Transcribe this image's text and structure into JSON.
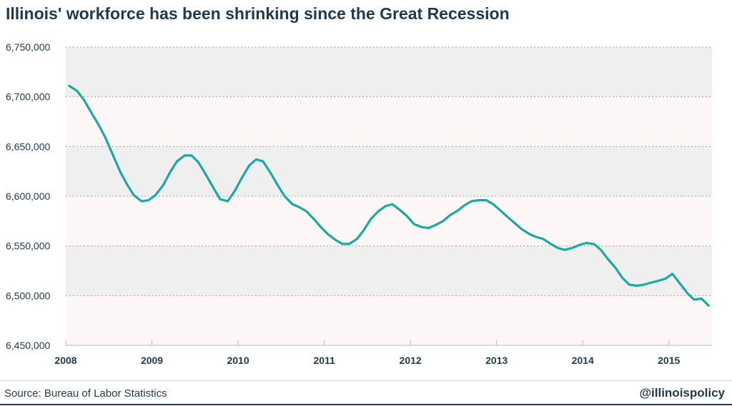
{
  "title": "Illinois' workforce has been shrinking since the Great Recession",
  "footer": {
    "source": "Source: Bureau of Labor Statistics",
    "handle": "@illinoispolicy"
  },
  "colors": {
    "line": "#1aaaa0",
    "band_dark": "#efefef",
    "band_light": "#fdf6f6",
    "text": "#1f3a4f",
    "grid": "#9aa4ab"
  },
  "chart_data": {
    "type": "line",
    "title": "Illinois' workforce has been shrinking since the Great Recession",
    "xlabel": "",
    "ylabel": "",
    "ylim": [
      6450000,
      6750000
    ],
    "yticks": [
      6450000,
      6500000,
      6550000,
      6600000,
      6650000,
      6700000,
      6750000
    ],
    "ytick_labels": [
      "6,450,000",
      "6,500,000",
      "6,550,000",
      "6,600,000",
      "6,650,000",
      "6,700,000",
      "6,750,000"
    ],
    "xlim": [
      2008.0,
      2015.5
    ],
    "xticks": [
      2008,
      2009,
      2010,
      2011,
      2012,
      2013,
      2014,
      2015
    ],
    "xtick_labels": [
      "2008",
      "2009",
      "2010",
      "2011",
      "2012",
      "2013",
      "2014",
      "2015"
    ],
    "grid": true,
    "alternating_bands": true,
    "series": [
      {
        "name": "",
        "color": "#1aaaa0",
        "x": [
          2008.04,
          2008.13,
          2008.21,
          2008.29,
          2008.38,
          2008.46,
          2008.54,
          2008.63,
          2008.71,
          2008.79,
          2008.88,
          2008.96,
          2009.04,
          2009.13,
          2009.21,
          2009.29,
          2009.38,
          2009.46,
          2009.54,
          2009.63,
          2009.71,
          2009.79,
          2009.88,
          2009.96,
          2010.04,
          2010.13,
          2010.21,
          2010.29,
          2010.38,
          2010.46,
          2010.54,
          2010.63,
          2010.71,
          2010.79,
          2010.88,
          2010.96,
          2011.04,
          2011.13,
          2011.21,
          2011.29,
          2011.38,
          2011.46,
          2011.54,
          2011.63,
          2011.71,
          2011.79,
          2011.88,
          2011.96,
          2012.04,
          2012.13,
          2012.21,
          2012.29,
          2012.38,
          2012.46,
          2012.54,
          2012.63,
          2012.71,
          2012.79,
          2012.88,
          2012.96,
          2013.04,
          2013.13,
          2013.21,
          2013.29,
          2013.38,
          2013.46,
          2013.54,
          2013.63,
          2013.71,
          2013.79,
          2013.88,
          2013.96,
          2014.04,
          2014.13,
          2014.21,
          2014.29,
          2014.38,
          2014.46,
          2014.54,
          2014.63,
          2014.71,
          2014.79,
          2014.88,
          2014.96,
          2015.04,
          2015.13,
          2015.21,
          2015.29,
          2015.38,
          2015.46
        ],
        "values": [
          6711000,
          6706000,
          6697000,
          6685000,
          6672000,
          6659000,
          6643000,
          6625000,
          6612000,
          6601000,
          6595000,
          6596000,
          6601000,
          6611000,
          6624000,
          6635000,
          6641000,
          6641000,
          6634000,
          6621000,
          6609000,
          6597000,
          6595000,
          6605000,
          6618000,
          6631000,
          6637000,
          6635000,
          6623000,
          6611000,
          6600000,
          6592000,
          6589000,
          6585000,
          6577000,
          6569000,
          6562000,
          6556000,
          6552000,
          6552000,
          6557000,
          6566000,
          6577000,
          6585000,
          6590000,
          6592000,
          6586000,
          6580000,
          6572000,
          6569000,
          6568000,
          6571000,
          6575000,
          6581000,
          6585000,
          6591000,
          6595000,
          6596000,
          6596000,
          6592000,
          6586000,
          6579000,
          6573000,
          6567000,
          6562000,
          6559000,
          6557000,
          6552000,
          6548000,
          6546000,
          6548000,
          6551000,
          6553000,
          6552000,
          6546000,
          6537000,
          6528000,
          6518000,
          6511000,
          6510000,
          6511000,
          6513000,
          6515000,
          6517000,
          6522000,
          6512000,
          6503000,
          6496000,
          6497000,
          6490000
        ]
      }
    ]
  }
}
